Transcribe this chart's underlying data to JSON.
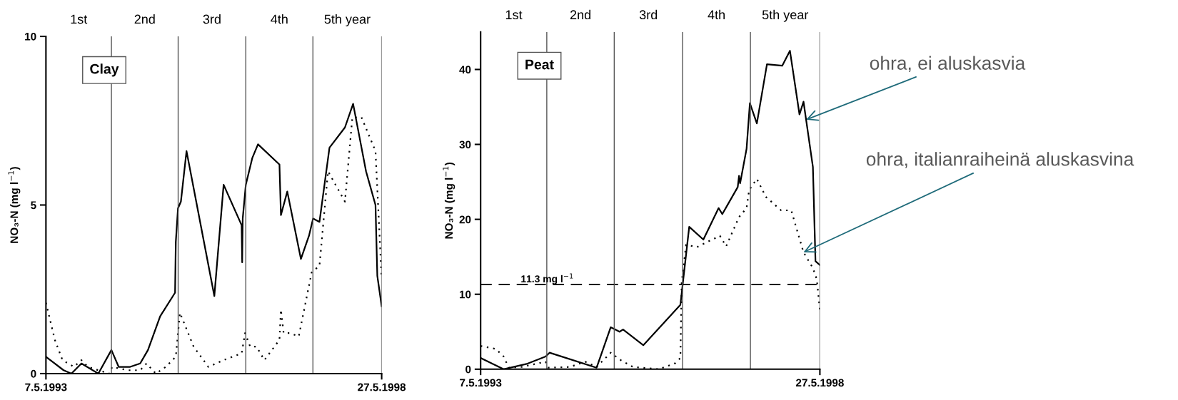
{
  "chart_data": [
    {
      "type": "line",
      "title": "Clay",
      "ylabel": "NO₃-N (mg l$^{−1}$)",
      "xlim": [
        "1993-05-07",
        "1998-05-27"
      ],
      "xticks": [
        {
          "value": "1993-05-07",
          "label": "7.5.1993"
        },
        {
          "value": "1998-05-27",
          "label": "27.5.1998"
        }
      ],
      "ylim": [
        0,
        10
      ],
      "yticks": [
        0,
        5,
        10
      ],
      "grid": false,
      "legend": false,
      "marker": "none",
      "ref_lines": [
        {
          "axis": "x",
          "value": "1994-05-02",
          "color": "#555555"
        },
        {
          "axis": "x",
          "value": "1995-05-04",
          "color": "#555555"
        },
        {
          "axis": "x",
          "value": "1996-05-10",
          "color": "#555555"
        },
        {
          "axis": "x",
          "value": "1997-05-14",
          "color": "#555555"
        },
        {
          "axis": "x",
          "value": "1998-05-27",
          "color": "#555555"
        }
      ],
      "annotations": [
        "1st",
        "2nd",
        "3rd",
        "4th",
        "5th year"
      ],
      "series": [
        {
          "color": "#000000",
          "line_style": "solid",
          "x": [
            "1993-05-07",
            "1993-08-12",
            "1993-09-24",
            "1993-11-18",
            "1994-02-19",
            "1994-05-02",
            "1994-06-11",
            "1994-08-13",
            "1994-10-07",
            "1994-11-19",
            "1995-01-25",
            "1995-04-17",
            "1995-04-21",
            "1995-05-03",
            "1995-05-19",
            "1995-06-19",
            "1995-11-19",
            "1996-01-09",
            "1996-04-17",
            "1996-04-20",
            "1996-04-23",
            "1996-05-10",
            "1996-06-15",
            "1996-07-16",
            "1996-11-11",
            "1996-11-19",
            "1996-12-24",
            "1997-03-09",
            "1997-04-23",
            "1997-05-15",
            "1997-06-19",
            "1997-08-13",
            "1997-11-06",
            "1997-12-21",
            "1998-03-02",
            "1998-04-23",
            "1998-05-03",
            "1998-05-27"
          ],
          "values": [
            0.5,
            0.1,
            0.0,
            0.3,
            0.0,
            0.7,
            0.2,
            0.2,
            0.3,
            0.7,
            1.7,
            2.4,
            3.9,
            4.9,
            5.1,
            6.6,
            2.3,
            5.6,
            4.4,
            3.3,
            4.6,
            5.6,
            6.4,
            6.8,
            6.2,
            4.7,
            5.4,
            3.4,
            4.1,
            4.6,
            4.5,
            6.7,
            7.3,
            8.0,
            6.0,
            5.0,
            2.9,
            2.0
          ]
        },
        {
          "color": "#000000",
          "line_style": "dotted",
          "x": [
            "1993-05-07",
            "1993-06-25",
            "1993-08-06",
            "1993-10-08",
            "1993-11-18",
            "1993-12-24",
            "1994-02-19",
            "1994-04-23",
            "1994-05-06",
            "1994-07-30",
            "1994-10-07",
            "1994-11-11",
            "1995-01-01",
            "1995-02-25",
            "1995-04-21",
            "1995-05-14",
            "1995-07-28",
            "1995-10-17",
            "1996-01-09",
            "1996-04-17",
            "1996-05-06",
            "1996-06-03",
            "1996-07-08",
            "1996-08-20",
            "1996-11-11",
            "1996-11-19",
            "1996-12-04",
            "1997-01-08",
            "1997-02-25",
            "1997-05-07",
            "1997-06-19",
            "1997-08-05",
            "1997-11-06",
            "1997-12-17",
            "1998-02-05",
            "1998-04-23",
            "1998-05-27"
          ],
          "values": [
            2.1,
            1.0,
            0.4,
            0.2,
            0.4,
            0.2,
            0.1,
            0.0,
            0.2,
            0.1,
            0.1,
            0.3,
            0.0,
            0.2,
            0.5,
            1.8,
            0.8,
            0.2,
            0.4,
            0.6,
            1.2,
            0.8,
            0.8,
            0.4,
            1.0,
            1.9,
            1.2,
            1.2,
            1.1,
            3.0,
            3.2,
            6.0,
            5.1,
            7.6,
            7.6,
            6.6,
            2.8
          ]
        }
      ]
    },
    {
      "type": "line",
      "title": "Peat",
      "ylabel": "NO₃-N (mg l$^{−1}$)",
      "xlim": [
        "1993-05-07",
        "1998-05-27"
      ],
      "xticks": [
        {
          "value": "1993-05-07",
          "label": "7.5.1993"
        },
        {
          "value": "1998-05-27",
          "label": "27.5.1998"
        }
      ],
      "ylim": [
        0,
        45
      ],
      "yticks": [
        0,
        10,
        20,
        30,
        40
      ],
      "grid": false,
      "legend": false,
      "marker": "none",
      "ref_lines": [
        {
          "axis": "y",
          "value": 11.3,
          "label": "11.3 mg l$^{−1}$",
          "line_style": "dashed",
          "color": "#000000"
        },
        {
          "axis": "x",
          "value": "1994-05-02",
          "color": "#555555"
        },
        {
          "axis": "x",
          "value": "1995-05-04",
          "color": "#555555"
        },
        {
          "axis": "x",
          "value": "1996-05-10",
          "color": "#555555"
        },
        {
          "axis": "x",
          "value": "1997-05-14",
          "color": "#555555"
        },
        {
          "axis": "x",
          "value": "1998-05-27",
          "color": "#555555"
        }
      ],
      "annotations": [
        "1st",
        "2nd",
        "3rd",
        "4th",
        "5th year"
      ],
      "series": [
        {
          "name": "ohra, ei aluskasvia",
          "color": "#000000",
          "line_style": "solid",
          "x": [
            "1993-05-07",
            "1993-09-09",
            "1994-01-12",
            "1994-04-26",
            "1994-05-17",
            "1995-01-28",
            "1995-04-15",
            "1995-05-01",
            "1995-06-02",
            "1995-06-21",
            "1995-10-09",
            "1996-04-28",
            "1996-06-15",
            "1996-08-31",
            "1996-11-22",
            "1996-12-12",
            "1997-03-06",
            "1997-03-13",
            "1997-03-19",
            "1997-04-23",
            "1997-05-11",
            "1997-06-18",
            "1997-08-12",
            "1997-11-03",
            "1997-12-15",
            "1998-02-05",
            "1998-02-27",
            "1998-03-13",
            "1998-04-19",
            "1998-05-03",
            "1998-05-27"
          ],
          "values": [
            1.5,
            0.0,
            0.7,
            1.7,
            2.2,
            0.2,
            5.6,
            5.4,
            5.0,
            5.3,
            3.2,
            8.6,
            19.0,
            17.3,
            21.5,
            20.7,
            24.3,
            25.8,
            24.8,
            29.4,
            35.5,
            32.8,
            40.7,
            40.5,
            42.5,
            34.0,
            35.7,
            33.3,
            27.0,
            14.4,
            13.9
          ]
        },
        {
          "name": "ohra, italianraiheinä aluskasvina",
          "color": "#000000",
          "line_style": "dotted",
          "x": [
            "1993-05-07",
            "1993-07-29",
            "1993-09-09",
            "1993-10-07",
            "1993-12-15",
            "1994-04-26",
            "1994-05-09",
            "1994-09-05",
            "1994-11-27",
            "1995-01-28",
            "1995-04-15",
            "1995-06-09",
            "1995-08-14",
            "1996-01-01",
            "1996-03-31",
            "1996-04-28",
            "1996-05-05",
            "1996-05-29",
            "1996-07-27",
            "1996-11-29",
            "1997-01-02",
            "1997-03-13",
            "1997-04-23",
            "1997-05-07",
            "1997-06-18",
            "1997-08-06",
            "1997-10-28",
            "1997-12-22",
            "1998-02-27",
            "1998-04-19",
            "1998-05-10",
            "1998-05-27"
          ],
          "values": [
            3.1,
            2.7,
            1.7,
            0.2,
            0.3,
            1.0,
            0.2,
            0.3,
            1.0,
            0.3,
            2.2,
            1.2,
            0.3,
            0.0,
            0.8,
            1.5,
            11.6,
            16.6,
            16.3,
            17.8,
            16.4,
            20.3,
            21.5,
            23.9,
            25.4,
            23.0,
            21.2,
            21.2,
            15.6,
            13.5,
            12.0,
            7.9
          ]
        }
      ]
    }
  ]
}
